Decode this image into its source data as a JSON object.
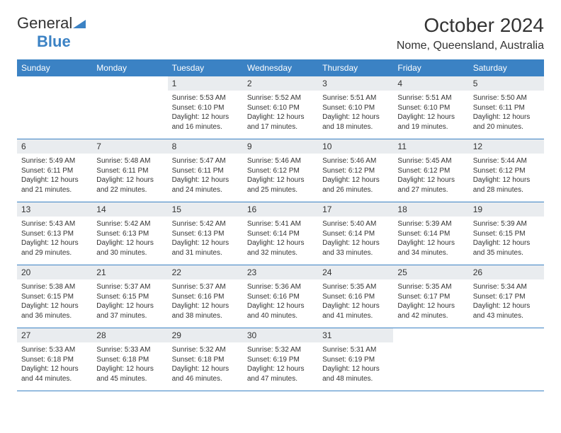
{
  "logo": {
    "text1": "General",
    "text2": "Blue"
  },
  "title": "October 2024",
  "location": "Nome, Queensland, Australia",
  "colors": {
    "header_bg": "#3b82c4",
    "header_text": "#ffffff",
    "daynum_bg": "#e9ecef",
    "row_border": "#3b82c4",
    "body_text": "#333333",
    "page_bg": "#ffffff"
  },
  "typography": {
    "title_fontsize": 28,
    "location_fontsize": 16,
    "header_fontsize": 12,
    "daynum_fontsize": 12,
    "content_fontsize": 10
  },
  "weekdays": [
    "Sunday",
    "Monday",
    "Tuesday",
    "Wednesday",
    "Thursday",
    "Friday",
    "Saturday"
  ],
  "weeks": [
    [
      null,
      null,
      {
        "n": "1",
        "sunrise": "Sunrise: 5:53 AM",
        "sunset": "Sunset: 6:10 PM",
        "daylight": "Daylight: 12 hours and 16 minutes."
      },
      {
        "n": "2",
        "sunrise": "Sunrise: 5:52 AM",
        "sunset": "Sunset: 6:10 PM",
        "daylight": "Daylight: 12 hours and 17 minutes."
      },
      {
        "n": "3",
        "sunrise": "Sunrise: 5:51 AM",
        "sunset": "Sunset: 6:10 PM",
        "daylight": "Daylight: 12 hours and 18 minutes."
      },
      {
        "n": "4",
        "sunrise": "Sunrise: 5:51 AM",
        "sunset": "Sunset: 6:10 PM",
        "daylight": "Daylight: 12 hours and 19 minutes."
      },
      {
        "n": "5",
        "sunrise": "Sunrise: 5:50 AM",
        "sunset": "Sunset: 6:11 PM",
        "daylight": "Daylight: 12 hours and 20 minutes."
      }
    ],
    [
      {
        "n": "6",
        "sunrise": "Sunrise: 5:49 AM",
        "sunset": "Sunset: 6:11 PM",
        "daylight": "Daylight: 12 hours and 21 minutes."
      },
      {
        "n": "7",
        "sunrise": "Sunrise: 5:48 AM",
        "sunset": "Sunset: 6:11 PM",
        "daylight": "Daylight: 12 hours and 22 minutes."
      },
      {
        "n": "8",
        "sunrise": "Sunrise: 5:47 AM",
        "sunset": "Sunset: 6:11 PM",
        "daylight": "Daylight: 12 hours and 24 minutes."
      },
      {
        "n": "9",
        "sunrise": "Sunrise: 5:46 AM",
        "sunset": "Sunset: 6:12 PM",
        "daylight": "Daylight: 12 hours and 25 minutes."
      },
      {
        "n": "10",
        "sunrise": "Sunrise: 5:46 AM",
        "sunset": "Sunset: 6:12 PM",
        "daylight": "Daylight: 12 hours and 26 minutes."
      },
      {
        "n": "11",
        "sunrise": "Sunrise: 5:45 AM",
        "sunset": "Sunset: 6:12 PM",
        "daylight": "Daylight: 12 hours and 27 minutes."
      },
      {
        "n": "12",
        "sunrise": "Sunrise: 5:44 AM",
        "sunset": "Sunset: 6:12 PM",
        "daylight": "Daylight: 12 hours and 28 minutes."
      }
    ],
    [
      {
        "n": "13",
        "sunrise": "Sunrise: 5:43 AM",
        "sunset": "Sunset: 6:13 PM",
        "daylight": "Daylight: 12 hours and 29 minutes."
      },
      {
        "n": "14",
        "sunrise": "Sunrise: 5:42 AM",
        "sunset": "Sunset: 6:13 PM",
        "daylight": "Daylight: 12 hours and 30 minutes."
      },
      {
        "n": "15",
        "sunrise": "Sunrise: 5:42 AM",
        "sunset": "Sunset: 6:13 PM",
        "daylight": "Daylight: 12 hours and 31 minutes."
      },
      {
        "n": "16",
        "sunrise": "Sunrise: 5:41 AM",
        "sunset": "Sunset: 6:14 PM",
        "daylight": "Daylight: 12 hours and 32 minutes."
      },
      {
        "n": "17",
        "sunrise": "Sunrise: 5:40 AM",
        "sunset": "Sunset: 6:14 PM",
        "daylight": "Daylight: 12 hours and 33 minutes."
      },
      {
        "n": "18",
        "sunrise": "Sunrise: 5:39 AM",
        "sunset": "Sunset: 6:14 PM",
        "daylight": "Daylight: 12 hours and 34 minutes."
      },
      {
        "n": "19",
        "sunrise": "Sunrise: 5:39 AM",
        "sunset": "Sunset: 6:15 PM",
        "daylight": "Daylight: 12 hours and 35 minutes."
      }
    ],
    [
      {
        "n": "20",
        "sunrise": "Sunrise: 5:38 AM",
        "sunset": "Sunset: 6:15 PM",
        "daylight": "Daylight: 12 hours and 36 minutes."
      },
      {
        "n": "21",
        "sunrise": "Sunrise: 5:37 AM",
        "sunset": "Sunset: 6:15 PM",
        "daylight": "Daylight: 12 hours and 37 minutes."
      },
      {
        "n": "22",
        "sunrise": "Sunrise: 5:37 AM",
        "sunset": "Sunset: 6:16 PM",
        "daylight": "Daylight: 12 hours and 38 minutes."
      },
      {
        "n": "23",
        "sunrise": "Sunrise: 5:36 AM",
        "sunset": "Sunset: 6:16 PM",
        "daylight": "Daylight: 12 hours and 40 minutes."
      },
      {
        "n": "24",
        "sunrise": "Sunrise: 5:35 AM",
        "sunset": "Sunset: 6:16 PM",
        "daylight": "Daylight: 12 hours and 41 minutes."
      },
      {
        "n": "25",
        "sunrise": "Sunrise: 5:35 AM",
        "sunset": "Sunset: 6:17 PM",
        "daylight": "Daylight: 12 hours and 42 minutes."
      },
      {
        "n": "26",
        "sunrise": "Sunrise: 5:34 AM",
        "sunset": "Sunset: 6:17 PM",
        "daylight": "Daylight: 12 hours and 43 minutes."
      }
    ],
    [
      {
        "n": "27",
        "sunrise": "Sunrise: 5:33 AM",
        "sunset": "Sunset: 6:18 PM",
        "daylight": "Daylight: 12 hours and 44 minutes."
      },
      {
        "n": "28",
        "sunrise": "Sunrise: 5:33 AM",
        "sunset": "Sunset: 6:18 PM",
        "daylight": "Daylight: 12 hours and 45 minutes."
      },
      {
        "n": "29",
        "sunrise": "Sunrise: 5:32 AM",
        "sunset": "Sunset: 6:18 PM",
        "daylight": "Daylight: 12 hours and 46 minutes."
      },
      {
        "n": "30",
        "sunrise": "Sunrise: 5:32 AM",
        "sunset": "Sunset: 6:19 PM",
        "daylight": "Daylight: 12 hours and 47 minutes."
      },
      {
        "n": "31",
        "sunrise": "Sunrise: 5:31 AM",
        "sunset": "Sunset: 6:19 PM",
        "daylight": "Daylight: 12 hours and 48 minutes."
      },
      null,
      null
    ]
  ]
}
